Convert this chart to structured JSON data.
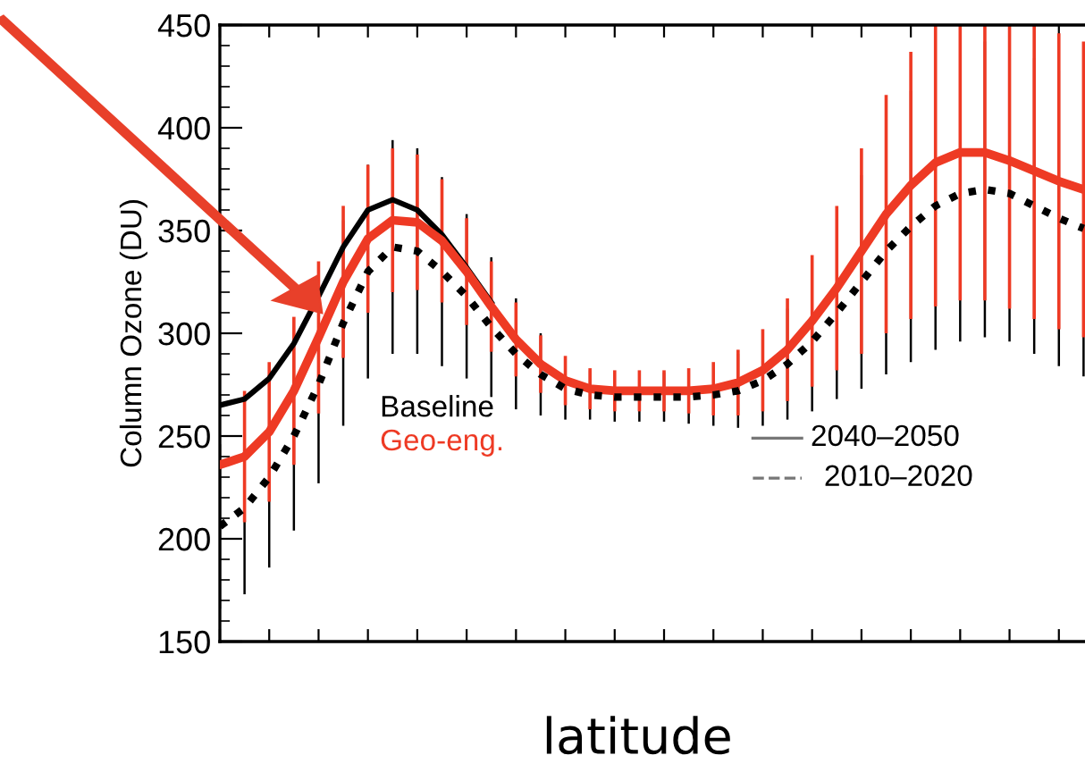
{
  "chart_data": {
    "type": "line",
    "xlabel": "latitude",
    "ylabel": "Column Ozone (DU)",
    "categories": [
      null,
      null,
      null,
      null,
      null,
      null,
      null,
      null,
      null,
      null,
      null,
      null,
      null,
      null,
      null,
      null,
      null,
      null,
      null,
      null,
      null,
      null,
      null,
      null,
      null,
      null,
      null,
      null,
      null,
      null,
      null,
      null,
      null,
      null,
      null,
      null
    ],
    "series": [
      {
        "name": "Baseline",
        "color": "#000000",
        "line_style": "solid",
        "values": [
          265,
          268,
          278,
          295,
          318,
          342,
          360,
          365,
          360,
          348,
          332,
          315,
          null,
          null,
          null,
          null,
          null,
          null,
          null,
          null,
          null,
          null,
          null,
          null,
          null,
          null,
          null,
          null,
          null,
          null,
          null,
          null,
          null,
          null,
          null,
          null
        ]
      },
      {
        "name": "Geo-eng.",
        "color": "#ee3a24",
        "line_style": "solid",
        "values": [
          236,
          240,
          252,
          272,
          298,
          325,
          346,
          355,
          354,
          345,
          330,
          313,
          297,
          285,
          277,
          273,
          272,
          272,
          272,
          272,
          273,
          276,
          282,
          292,
          306,
          322,
          340,
          358,
          372,
          383,
          388,
          388,
          384,
          379,
          374,
          370
        ],
        "errors": [
          null,
          32,
          34,
          36,
          37,
          37,
          36,
          35,
          33,
          30,
          26,
          22,
          18,
          14,
          12,
          10,
          10,
          10,
          10,
          11,
          13,
          16,
          20,
          25,
          32,
          40,
          50,
          58,
          65,
          70,
          72,
          72,
          72,
          72,
          72,
          72
        ]
      },
      {
        "color": "#000000",
        "line_style": "dotted",
        "values": [
          206,
          215,
          230,
          250,
          275,
          305,
          330,
          342,
          340,
          330,
          318,
          303,
          290,
          280,
          273,
          270,
          269,
          269,
          269,
          269,
          270,
          272,
          277,
          285,
          296,
          310,
          325,
          340,
          352,
          362,
          368,
          370,
          368,
          362,
          356,
          351
        ],
        "errors": [
          40,
          42,
          44,
          46,
          48,
          50,
          52,
          52,
          50,
          46,
          40,
          34,
          27,
          20,
          15,
          12,
          12,
          12,
          12,
          13,
          15,
          18,
          22,
          27,
          34,
          42,
          52,
          60,
          66,
          70,
          72,
          72,
          72,
          72,
          72,
          72
        ]
      }
    ],
    "annotations": [
      "2040–2050",
      "2010–2020"
    ],
    "ylim": [
      150,
      450
    ],
    "yticks": [
      150,
      200,
      250,
      300,
      350,
      400,
      450
    ],
    "legend": "center left",
    "marker": "none",
    "grid": false
  }
}
